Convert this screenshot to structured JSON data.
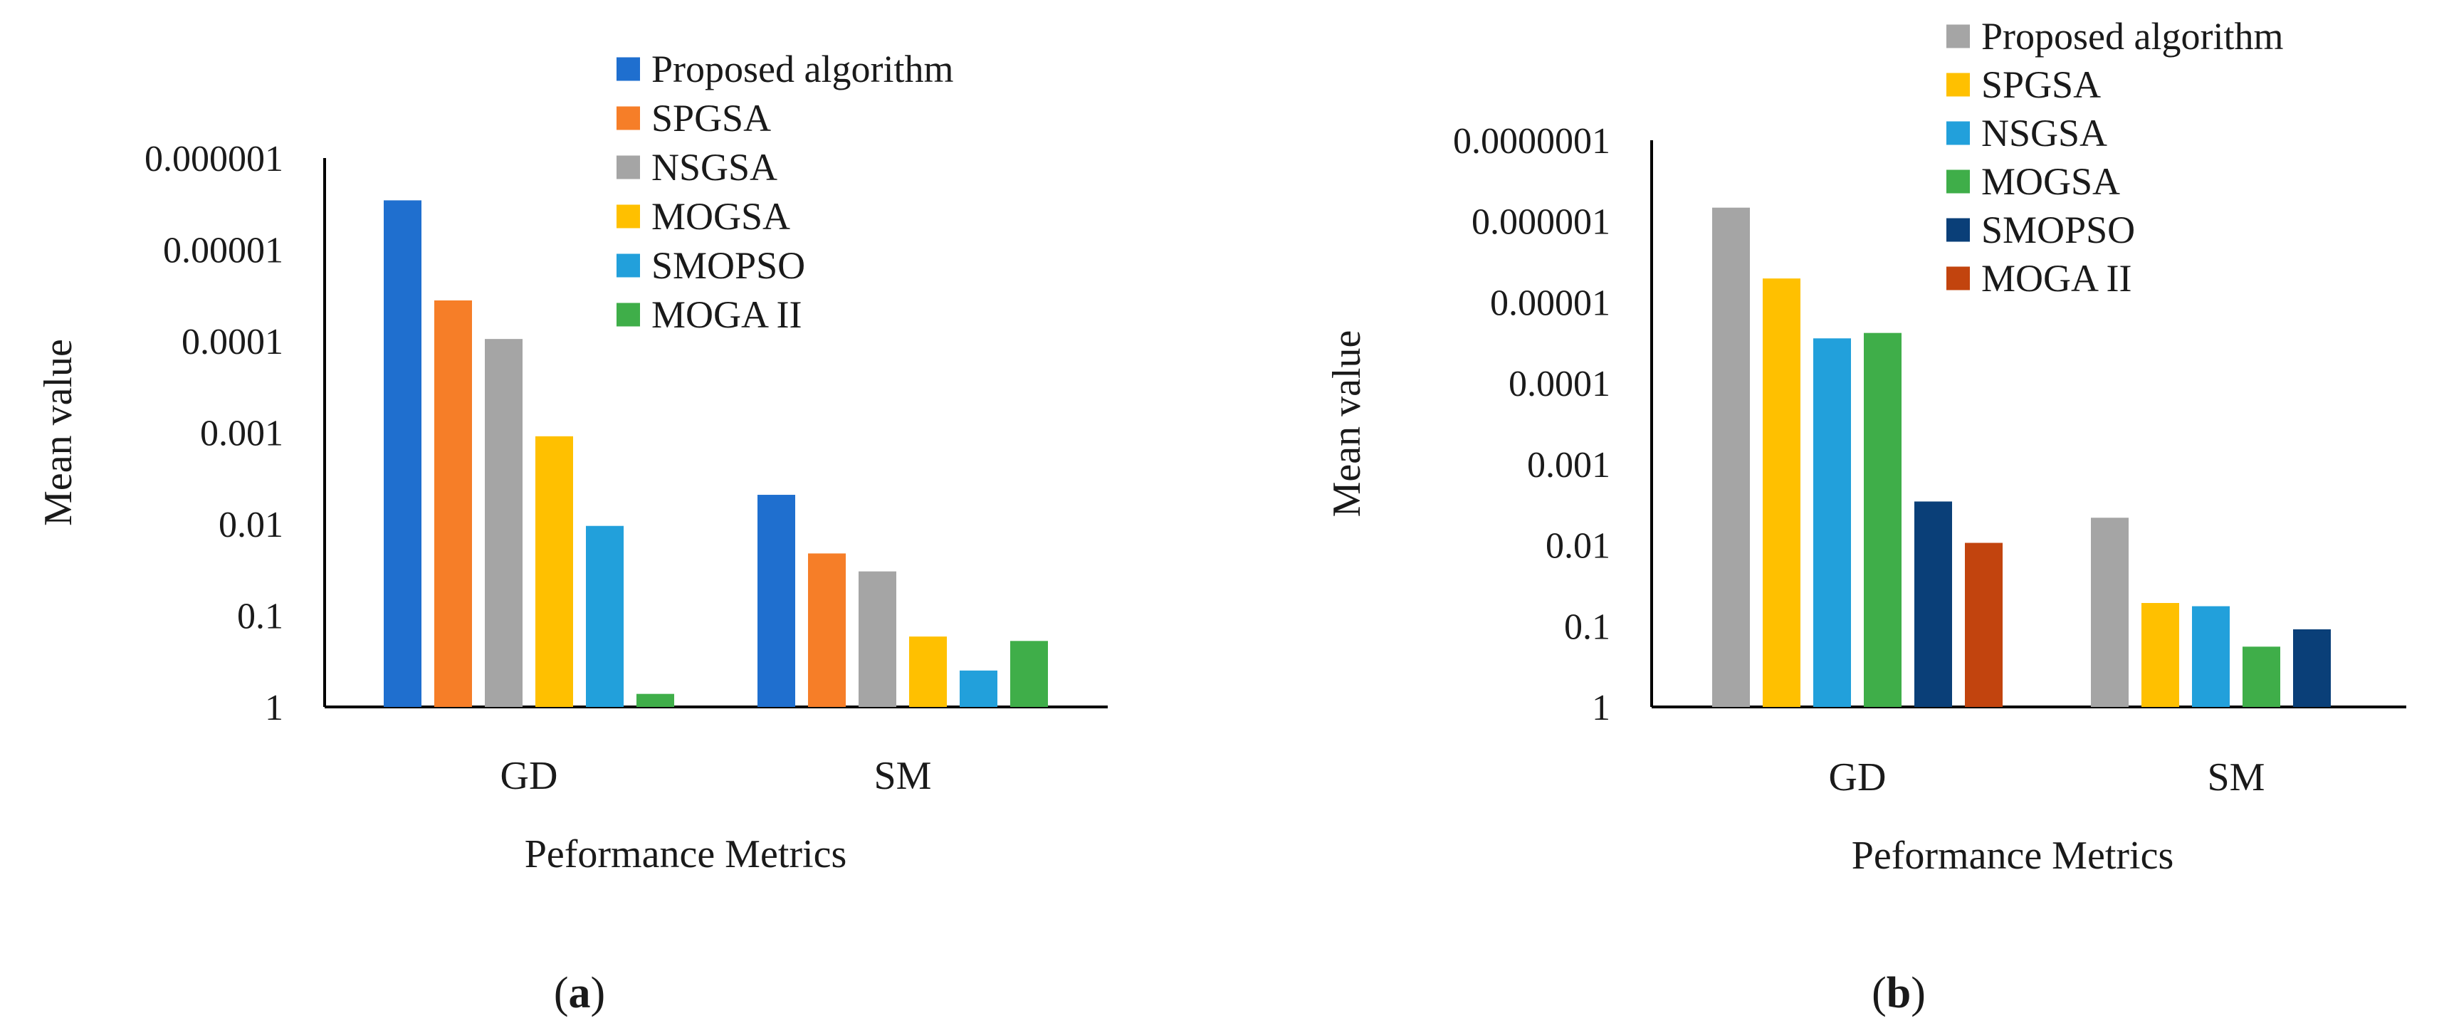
{
  "chart_data": [
    {
      "id": "a",
      "type": "bar",
      "scale": "log-reversed",
      "caption_letter": "a",
      "caption_open": "(",
      "caption_close": ")",
      "xlabel": "Peformance Metrics",
      "ylabel": "Mean value",
      "ylim": [
        1,
        1e-06
      ],
      "yticks": [
        "1",
        "0.1",
        "0.01",
        "0.001",
        "0.0001",
        "0.00001",
        "0.000001"
      ],
      "categories": [
        "GD",
        "SM"
      ],
      "series": [
        {
          "name": "Proposed algorithm",
          "color": "#1f6fcf",
          "values": [
            2.9e-06,
            0.0048
          ]
        },
        {
          "name": "SPGSA",
          "color": "#f67e28",
          "values": [
            3.6e-05,
            0.021
          ]
        },
        {
          "name": "NSGSA",
          "color": "#a5a5a5",
          "values": [
            9.5e-05,
            0.033
          ]
        },
        {
          "name": "MOGSA",
          "color": "#ffc000",
          "values": [
            0.0011,
            0.17
          ]
        },
        {
          "name": "SMOPSO",
          "color": "#22a0db",
          "values": [
            0.0105,
            0.4
          ]
        },
        {
          "name": "MOGA II",
          "color": "#3fae49",
          "values": [
            0.72,
            0.19
          ]
        }
      ]
    },
    {
      "id": "b",
      "type": "bar",
      "scale": "log-reversed",
      "caption_letter": "b",
      "caption_open": "(",
      "caption_close": ")",
      "xlabel": "Peformance Metrics",
      "ylabel": "Mean value",
      "ylim": [
        1,
        1e-07
      ],
      "yticks": [
        "1",
        "0.1",
        "0.01",
        "0.001",
        "0.0001",
        "0.00001",
        "0.000001",
        "0.0000001"
      ],
      "categories": [
        "GD",
        "SM"
      ],
      "series": [
        {
          "name": "Proposed algorithm",
          "color": "#a5a5a5",
          "values": [
            6.8e-07,
            0.0046
          ]
        },
        {
          "name": "SPGSA",
          "color": "#ffc000",
          "values": [
            5.1e-06,
            0.052
          ]
        },
        {
          "name": "NSGSA",
          "color": "#22a0db",
          "values": [
            2.8e-05,
            0.057
          ]
        },
        {
          "name": "MOGSA",
          "color": "#3fae49",
          "values": [
            2.4e-05,
            0.18
          ]
        },
        {
          "name": "SMOPSO",
          "color": "#0a3f78",
          "values": [
            0.0029,
            0.11
          ]
        },
        {
          "name": "MOGA II",
          "color": "#c2440e",
          "values": [
            0.0094,
            null
          ]
        }
      ]
    }
  ]
}
